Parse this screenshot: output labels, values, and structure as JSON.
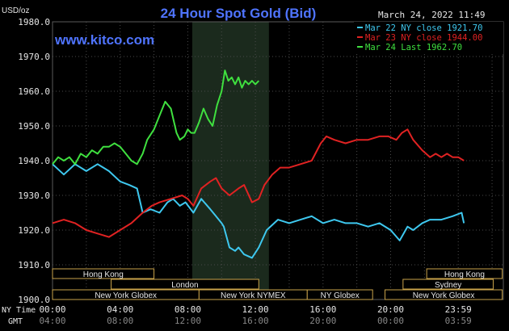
{
  "header": {
    "title": "24 Hour Spot Gold (Bid)",
    "y_unit": "USD/oz",
    "datetime": "March 24, 2022 11:49",
    "website": "www.kitco.com"
  },
  "legend": [
    {
      "label": "Mar 22 NY close 1921.70",
      "color": "#3ec8ef"
    },
    {
      "label": "Mar 23 NY close 1944.00",
      "color": "#e02222"
    },
    {
      "label": "Mar 24 Last 1962.70",
      "color": "#3fe03f"
    }
  ],
  "sessions": {
    "rows": [
      [
        {
          "label": "Hong Kong",
          "start": -0.1,
          "end": 9.0
        },
        {
          "label": "Hong Kong",
          "start": 33.2,
          "end": 39.9
        }
      ],
      [
        {
          "label": "London",
          "start": 5.2,
          "end": 18.3
        },
        {
          "label": "Sydney",
          "start": 31.1,
          "end": 39.1
        }
      ],
      [
        {
          "label": "New York Globex",
          "start": -0.1,
          "end": 13.0
        },
        {
          "label": "New York NYMEX",
          "start": 13.0,
          "end": 22.6
        },
        {
          "label": "NY Globex",
          "start": 22.6,
          "end": 28.4
        },
        {
          "label": "New York Globex",
          "start": 29.5,
          "end": 39.9
        }
      ]
    ]
  },
  "chart_data": {
    "type": "line",
    "title": "24 Hour Spot Gold (Bid)",
    "ylabel": "USD/oz",
    "xlim": [
      0,
      40
    ],
    "ylim": [
      1900,
      1980
    ],
    "y_ticks": [
      "1900.0",
      "1910.0",
      "1920.0",
      "1930.0",
      "1940.0",
      "1950.0",
      "1960.0",
      "1970.0",
      "1980.0"
    ],
    "x_axis_ny_label": "NY Time",
    "x_axis_gmt_label": "GMT",
    "x_ticks": [
      {
        "x": 0,
        "ny": "00:00",
        "gmt": "04:00"
      },
      {
        "x": 6,
        "ny": "04:00",
        "gmt": "08:00"
      },
      {
        "x": 12,
        "ny": "08:00",
        "gmt": "12:00"
      },
      {
        "x": 18,
        "ny": "12:00",
        "gmt": "16:00"
      },
      {
        "x": 24,
        "ny": "16:00",
        "gmt": "20:00"
      },
      {
        "x": 30,
        "ny": "20:00",
        "gmt": "00:00"
      },
      {
        "x": 36,
        "ny": "23:59",
        "gmt": "03:59"
      }
    ],
    "nymex_shade": [
      12.4,
      19.2
    ],
    "grid": true,
    "series": [
      {
        "name": "Mar 22 NY close 1921.70",
        "color": "#3ec8ef",
        "x": [
          0,
          1,
          2,
          3,
          4,
          5,
          6,
          6.8,
          7.5,
          8,
          8.7,
          9.5,
          10.2,
          10.7,
          11.3,
          11.8,
          12.5,
          13.2,
          14,
          14.5,
          15,
          15.2,
          15.7,
          16.2,
          16.5,
          17,
          17.7,
          18.3,
          19,
          20,
          21,
          22,
          23,
          24,
          25,
          26,
          27,
          28,
          29,
          30,
          30.8,
          31.5,
          32,
          32.8,
          33.5,
          34.5,
          35.5,
          36.3,
          36.5
        ],
        "y": [
          1939,
          1936,
          1939,
          1937,
          1939,
          1937,
          1934,
          1933,
          1932,
          1925,
          1926,
          1925,
          1928,
          1929,
          1927,
          1928,
          1925,
          1929,
          1926,
          1924,
          1922,
          1921,
          1915,
          1914,
          1915,
          1913,
          1912,
          1915,
          1920,
          1923,
          1922,
          1923,
          1924,
          1922,
          1923,
          1922,
          1922,
          1921,
          1922,
          1920,
          1917,
          1921,
          1920,
          1922,
          1923,
          1923,
          1924,
          1925,
          1922
        ]
      },
      {
        "name": "Mar 23 NY close 1944.00",
        "color": "#e02222",
        "x": [
          0,
          1,
          2,
          3,
          4,
          5,
          6,
          7,
          8,
          8.8,
          9.5,
          10.5,
          11.5,
          12,
          12.5,
          13.2,
          14,
          14.5,
          15,
          15.7,
          16.5,
          17,
          17.7,
          18.3,
          18.8,
          19.5,
          20.2,
          21,
          22,
          23,
          23.8,
          24.3,
          25,
          26,
          27,
          28,
          29,
          29.8,
          30.5,
          31,
          31.5,
          32,
          32.8,
          33.5,
          34,
          34.5,
          35,
          35.5,
          36,
          36.5
        ],
        "y": [
          1922,
          1923,
          1922,
          1920,
          1919,
          1918,
          1920,
          1922,
          1925,
          1927,
          1928,
          1929,
          1930,
          1929,
          1927,
          1932,
          1934,
          1935,
          1932,
          1930,
          1932,
          1933,
          1928,
          1929,
          1933,
          1936,
          1938,
          1938,
          1939,
          1940,
          1945,
          1947,
          1946,
          1945,
          1946,
          1946,
          1947,
          1947,
          1946,
          1948,
          1949,
          1946,
          1943,
          1941,
          1942,
          1941,
          1942,
          1941,
          1941,
          1940
        ]
      },
      {
        "name": "Mar 24 Last 1962.70",
        "color": "#3fe03f",
        "x": [
          0,
          0.5,
          1,
          1.5,
          2,
          2.5,
          3,
          3.5,
          4,
          4.5,
          5,
          5.5,
          6,
          6.5,
          7,
          7.5,
          8,
          8.4,
          9,
          9.5,
          10,
          10.5,
          11,
          11.3,
          11.7,
          12,
          12.3,
          12.6,
          13,
          13.4,
          13.8,
          14.2,
          14.6,
          15,
          15.3,
          15.6,
          15.9,
          16.2,
          16.5,
          16.8,
          17.1,
          17.4,
          17.7,
          18,
          18.3
        ],
        "y": [
          1939,
          1941,
          1940,
          1941,
          1939,
          1942,
          1941,
          1943,
          1942,
          1944,
          1944,
          1945,
          1944,
          1942,
          1940,
          1939,
          1942,
          1946,
          1949,
          1953,
          1957,
          1955,
          1948,
          1946,
          1947,
          1949,
          1948,
          1948,
          1951,
          1955,
          1952,
          1950,
          1956,
          1960,
          1966,
          1963,
          1964,
          1962,
          1964,
          1961,
          1963,
          1962,
          1963,
          1962,
          1963
        ]
      }
    ]
  }
}
